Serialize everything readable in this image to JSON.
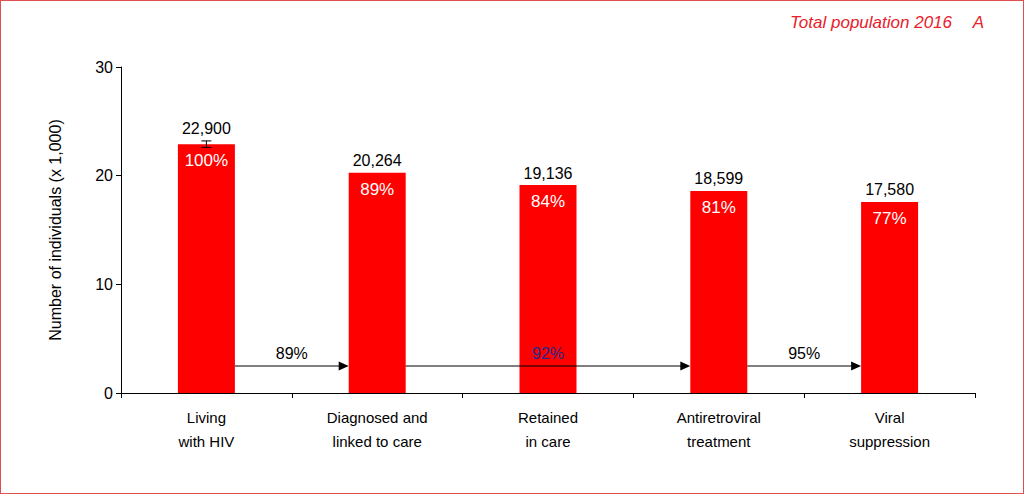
{
  "chart_data": {
    "type": "bar",
    "title": "Total population 2016",
    "panel_label": "A",
    "y_label": "Number of individuals (x 1,000)",
    "categories": [
      "Living\nwith HIV",
      "Diagnosed and\nlinked to care",
      "Retained\nin care",
      "Antiretroviral\ntreatment",
      "Viral\nsuppression"
    ],
    "values": [
      22.9,
      20.264,
      19.136,
      18.599,
      17.58
    ],
    "value_labels": [
      "22,900",
      "20,264",
      "19,136",
      "18,599",
      "17,580"
    ],
    "percent_labels": [
      "100%",
      "89%",
      "84%",
      "81%",
      "77%"
    ],
    "errors": [
      0.3,
      null,
      null,
      null,
      null
    ],
    "transitions": [
      {
        "from": "Living\nwith HIV",
        "to": "Diagnosed and\nlinked to care",
        "label": "89%",
        "color": "#000000"
      },
      {
        "from": "Diagnosed and\nlinked to care",
        "to": "Antiretroviral\ntreatment",
        "label": "92%",
        "color": "#1f2a8c"
      },
      {
        "from": "Antiretroviral\ntreatment",
        "to": "Viral\nsuppression",
        "label": "95%",
        "color": "#000000"
      }
    ],
    "color": "#ff0000",
    "ylim": [
      0,
      30
    ],
    "yticks": [
      0,
      10,
      20,
      30
    ],
    "grid": false,
    "data_labels": true
  }
}
